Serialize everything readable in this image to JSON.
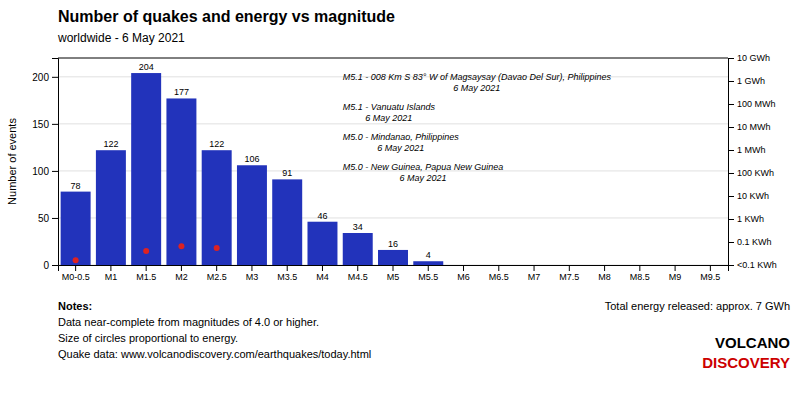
{
  "chart_data": {
    "type": "bar",
    "title": "Number of quakes and energy vs magnitude",
    "subtitle": "worldwide -  6 May 2021",
    "categories": [
      "M0-0.5",
      "M1",
      "M1.5",
      "M2",
      "M2.5",
      "M3",
      "M3.5",
      "M4",
      "M4.5",
      "M5",
      "M5.5",
      "M6",
      "M6.5",
      "M7",
      "M7.5",
      "M8",
      "M8.5",
      "M9",
      "M9.5"
    ],
    "series": [
      {
        "type": "bar",
        "color": "#2233bb",
        "values": [
          78,
          122,
          204,
          177,
          122,
          106,
          91,
          46,
          34,
          16,
          4,
          0,
          0,
          0,
          0,
          0,
          0,
          0,
          0
        ],
        "data_labels": true,
        "value_labels": [
          "78",
          "122",
          "204",
          "177",
          "122",
          "106",
          "91",
          "46",
          "34",
          "16",
          "4",
          null,
          null,
          null,
          null,
          null,
          null,
          null,
          null
        ]
      },
      {
        "type": "scatter",
        "color": "#dd2222",
        "marker": "circle",
        "values": [
          5,
          null,
          15,
          20,
          18,
          null,
          null,
          null,
          null,
          null,
          null,
          null,
          null,
          null,
          null,
          null,
          null,
          null,
          null
        ]
      }
    ],
    "ylabel": "Number of events",
    "ylim": [
      0,
      220
    ],
    "yticks": [
      0,
      50,
      100,
      150,
      200
    ],
    "y2lim": [
      0,
      220
    ],
    "y2ticks": [
      {
        "value": 220,
        "label": "10 GWh"
      },
      {
        "value": 195.555556,
        "label": "1 GWh"
      },
      {
        "value": 171.111111,
        "label": "100 MWh"
      },
      {
        "value": 146.666667,
        "label": "10 MWh"
      },
      {
        "value": 122.222222,
        "label": "1 MWh"
      },
      {
        "value": 97.777778,
        "label": "100 KWh"
      },
      {
        "value": 73.333333,
        "label": "10 KWh"
      },
      {
        "value": 48.888889,
        "label": "1 KWh"
      },
      {
        "value": 24.444444,
        "label": "0.1 KWh"
      },
      {
        "value": 0,
        "label": "<0.1 KWh"
      }
    ],
    "grid": true,
    "annotations": [
      "M5.1 - 008 Km S 83° W of Magsaysay (Davao Del Sur), Philippines\n                        6 May 2021",
      "M5.1 - Vanuatu Islands\n     6 May 2021",
      "M5.0 - Mindanao, Philippines\n          6 May 2021",
      "M5.0 - New Guinea, Papua New Guinea\n               6 May 2021"
    ],
    "notes": [
      "Notes:",
      "Data near-complete from magnitudes of 4.0 or higher.",
      "Size of circles proportional to energy.",
      "Quake data: www.volcanodiscovery.com/earthquakes/today.html"
    ],
    "caption": "Total energy released: approx. 7 GWh",
    "logo": [
      {
        "text": "VOLCANO"
      },
      {
        "text": "DISCOVERY",
        "color": "#cc0000"
      }
    ]
  }
}
